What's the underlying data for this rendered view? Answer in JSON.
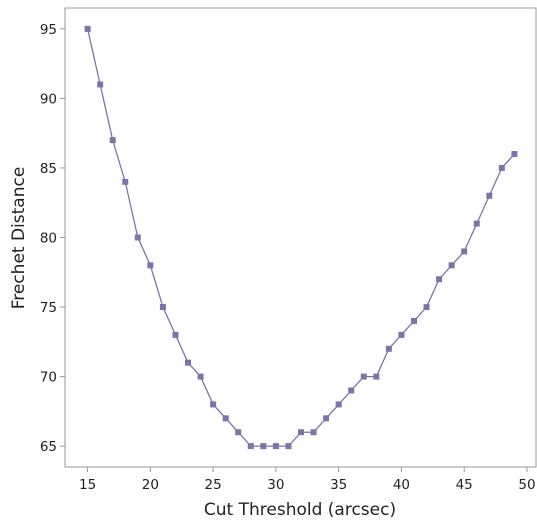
{
  "chart_data": {
    "type": "line",
    "title": "",
    "xlabel": "Cut Threshold (arcsec)",
    "ylabel": "Frechet Distance",
    "xlim": [
      13.2,
      50.8
    ],
    "ylim": [
      63.5,
      96.5
    ],
    "xticks": [
      15,
      20,
      25,
      30,
      35,
      40,
      45,
      50
    ],
    "yticks": [
      65,
      70,
      75,
      80,
      85,
      90,
      95
    ],
    "grid": false,
    "legend": "none",
    "color": "#7b74a8",
    "marker": "square",
    "series": [
      {
        "x": [
          15,
          16,
          17,
          18,
          19,
          20,
          21,
          22,
          23,
          24,
          25,
          26,
          27,
          28,
          29,
          30,
          31,
          32,
          33,
          34,
          35,
          36,
          37,
          38,
          39,
          40,
          41,
          42,
          43,
          44,
          45,
          46,
          47,
          48,
          49
        ],
        "values": [
          95,
          91,
          87,
          84,
          80,
          78,
          75,
          73,
          71,
          70,
          68,
          67,
          66,
          65,
          65,
          65,
          65,
          66,
          66,
          67,
          68,
          69,
          70,
          70,
          72,
          73,
          74,
          75,
          77,
          78,
          79,
          81,
          83,
          85,
          86
        ]
      }
    ]
  }
}
